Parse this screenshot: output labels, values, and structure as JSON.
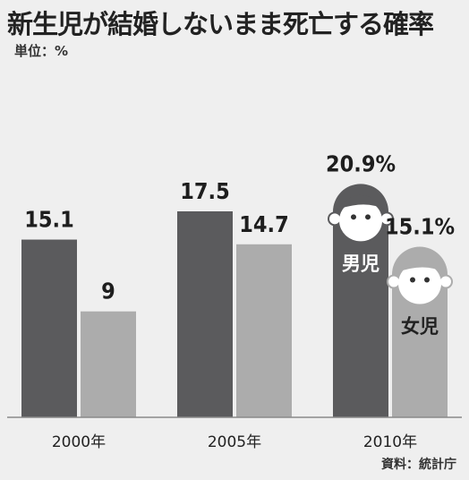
{
  "title": "新生児が結婚しないまま死亡する確率",
  "unit_label": "単位：%",
  "source": "資料：統計庁",
  "colors": {
    "male": "#5b5b5d",
    "female": "#acacac",
    "background": "#efefef",
    "face": "#ffffff",
    "text": "#222222"
  },
  "chart_data": {
    "type": "bar",
    "categories": [
      "2000年",
      "2005年",
      "2010年"
    ],
    "series": [
      {
        "name": "男児",
        "values": [
          15.1,
          17.5,
          20.9
        ]
      },
      {
        "name": "女児",
        "values": [
          9,
          14.7,
          15.1
        ]
      }
    ],
    "value_labels": [
      [
        "15.1",
        "17.5",
        "20.9%"
      ],
      [
        "9",
        "14.7",
        "15.1%"
      ]
    ],
    "ylim": [
      0,
      25
    ],
    "grid": false
  }
}
